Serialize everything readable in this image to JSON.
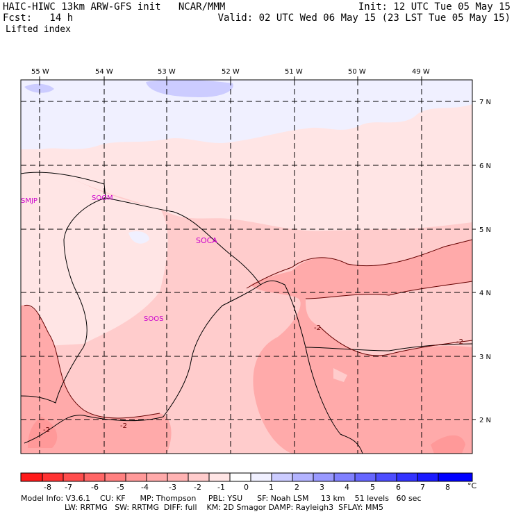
{
  "header": {
    "left_line1": "HAIC-HIWC 13km ARW-GFS init   NCAR/MMM",
    "left_line2": "Fcst:   14 h",
    "right_line1": "Init: 12 UTC Tue 05 May 15",
    "right_line2": "Valid: 02 UTC Wed 06 May 15 (23 LST Tue 05 May 15)",
    "field": "Lifted index"
  },
  "longitudes": [
    "55 W",
    "54 W",
    "53 W",
    "52 W",
    "51 W",
    "50 W",
    "49 W"
  ],
  "latitudes": [
    "7 N",
    "6 N",
    "5 N",
    "4 N",
    "3 N",
    "2 N"
  ],
  "stations": [
    "SMJP",
    "SOGM",
    "SOCA",
    "SOOS"
  ],
  "contour_labels": [
    "-2",
    "-2",
    "-2",
    "-2"
  ],
  "colors": {
    "m8": "#ff1a1a",
    "m7": "#ff3333",
    "m6": "#ff4d4d",
    "m5": "#ff6666",
    "m4": "#ff8080",
    "m3": "#ff9999",
    "m2": "#ffb3b3",
    "m1": "#ffcccc",
    "m0": "#ffe5e5",
    "p0": "#f0f0ff",
    "p1": "#ccccff",
    "p2": "#b3b3ff",
    "p3": "#9999ff",
    "p4": "#6666ff",
    "p5": "#4d4dff",
    "p6": "#3333ff",
    "p7": "#1a1aff",
    "p8": "#0000ff"
  },
  "colorbar": {
    "ticks": [
      "-8",
      "-7",
      "-6",
      "-5",
      "-4",
      "-3",
      "-2",
      "-1",
      "0",
      "1",
      "2",
      "3",
      "4",
      "5",
      "6",
      "7",
      "8"
    ],
    "unit": "°C"
  },
  "footer": {
    "line1": "Model Info: V3.6.1    CU: KF      MP: Thompson     PBL: YSU      SF: Noah LSM     13 km    51 levels   60 sec",
    "line2": "                  LW: RRTMG   SW: RRTMG  DIFF: full    KM: 2D Smagor DAMP: Rayleigh3  SFLAY: MM5"
  }
}
